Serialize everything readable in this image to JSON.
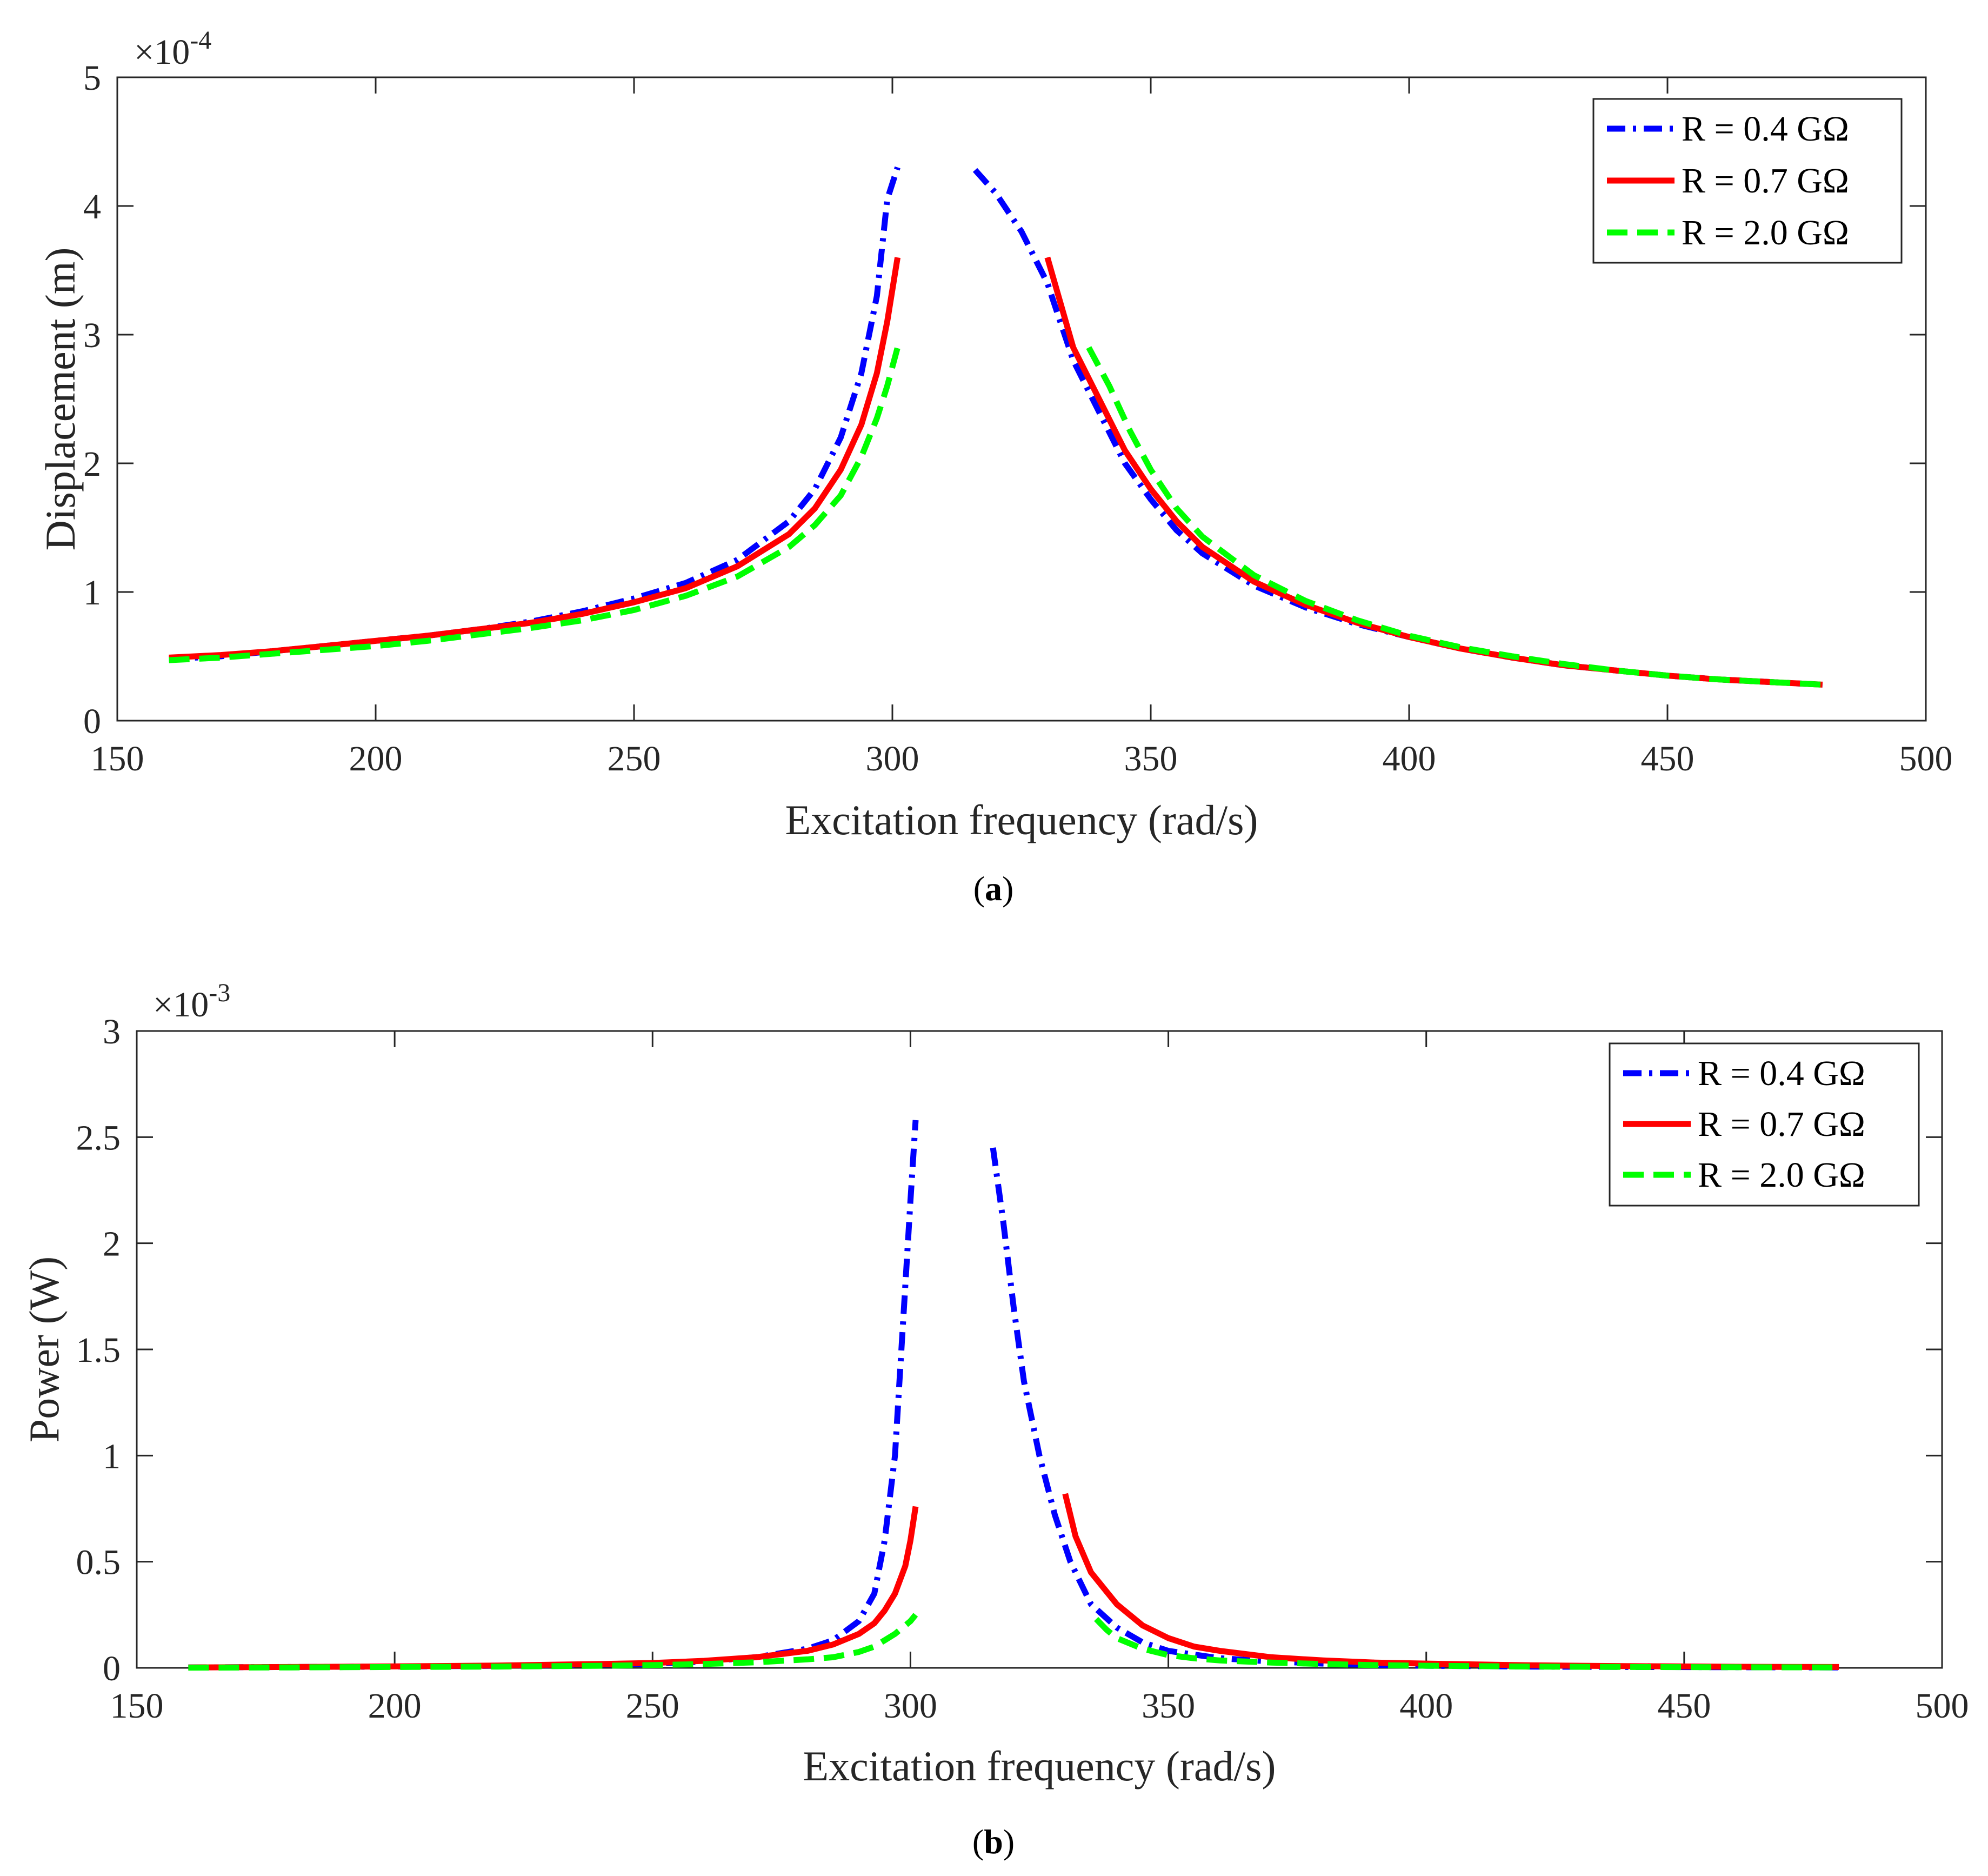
{
  "chart_data": [
    {
      "type": "line",
      "caption": "(a)",
      "caption_letter": "a",
      "xlabel": "Excitation frequency (rad/s)",
      "ylabel": "Displacement (m)",
      "exponent_label": "×10",
      "exponent_power": "-4",
      "scale": 0.0001,
      "xlim": [
        150,
        500
      ],
      "ylim": [
        0,
        5
      ],
      "xticks": [
        150,
        200,
        250,
        300,
        350,
        400,
        450,
        500
      ],
      "yticks": [
        0,
        1,
        2,
        3,
        4,
        5
      ],
      "legend_position": "top-right",
      "grid": false,
      "series": [
        {
          "name": "R = 0.4 GΩ",
          "color": "#0000ff",
          "style": "dashdot",
          "segments": [
            [
              [
                160,
                0.48
              ],
              [
                170,
                0.5
              ],
              [
                180,
                0.54
              ],
              [
                190,
                0.58
              ],
              [
                200,
                0.62
              ],
              [
                210,
                0.66
              ],
              [
                220,
                0.71
              ],
              [
                230,
                0.77
              ],
              [
                240,
                0.85
              ],
              [
                250,
                0.95
              ],
              [
                260,
                1.07
              ],
              [
                270,
                1.25
              ],
              [
                280,
                1.55
              ],
              [
                285,
                1.8
              ],
              [
                290,
                2.2
              ],
              [
                294,
                2.7
              ],
              [
                297,
                3.3
              ],
              [
                299,
                4.05
              ],
              [
                301,
                4.3
              ]
            ],
            [
              [
                316,
                4.28
              ],
              [
                320,
                4.1
              ],
              [
                325,
                3.8
              ],
              [
                330,
                3.4
              ],
              [
                335,
                2.8
              ],
              [
                340,
                2.4
              ],
              [
                345,
                2.0
              ],
              [
                350,
                1.72
              ],
              [
                355,
                1.48
              ],
              [
                360,
                1.3
              ],
              [
                370,
                1.05
              ],
              [
                380,
                0.88
              ],
              [
                390,
                0.75
              ],
              [
                400,
                0.65
              ],
              [
                410,
                0.56
              ],
              [
                420,
                0.49
              ],
              [
                430,
                0.43
              ],
              [
                440,
                0.39
              ],
              [
                450,
                0.35
              ],
              [
                460,
                0.32
              ],
              [
                470,
                0.3
              ],
              [
                480,
                0.28
              ]
            ]
          ]
        },
        {
          "name": "R = 0.7 GΩ",
          "color": "#ff0000",
          "style": "solid",
          "segments": [
            [
              [
                160,
                0.49
              ],
              [
                170,
                0.51
              ],
              [
                180,
                0.54
              ],
              [
                190,
                0.58
              ],
              [
                200,
                0.62
              ],
              [
                210,
                0.66
              ],
              [
                220,
                0.71
              ],
              [
                230,
                0.76
              ],
              [
                240,
                0.83
              ],
              [
                250,
                0.92
              ],
              [
                260,
                1.03
              ],
              [
                270,
                1.2
              ],
              [
                280,
                1.45
              ],
              [
                285,
                1.65
              ],
              [
                290,
                1.95
              ],
              [
                294,
                2.3
              ],
              [
                297,
                2.7
              ],
              [
                299,
                3.1
              ],
              [
                301,
                3.6
              ]
            ],
            [
              [
                330,
                3.6
              ],
              [
                335,
                2.9
              ],
              [
                340,
                2.5
              ],
              [
                345,
                2.1
              ],
              [
                350,
                1.8
              ],
              [
                355,
                1.55
              ],
              [
                360,
                1.35
              ],
              [
                370,
                1.08
              ],
              [
                380,
                0.9
              ],
              [
                390,
                0.76
              ],
              [
                400,
                0.65
              ],
              [
                410,
                0.56
              ],
              [
                420,
                0.49
              ],
              [
                430,
                0.43
              ],
              [
                440,
                0.39
              ],
              [
                450,
                0.35
              ],
              [
                460,
                0.32
              ],
              [
                470,
                0.3
              ],
              [
                480,
                0.28
              ]
            ]
          ]
        },
        {
          "name": "R = 2.0 GΩ",
          "color": "#00ff00",
          "style": "dashed",
          "segments": [
            [
              [
                160,
                0.47
              ],
              [
                170,
                0.49
              ],
              [
                180,
                0.52
              ],
              [
                190,
                0.55
              ],
              [
                200,
                0.58
              ],
              [
                210,
                0.62
              ],
              [
                220,
                0.67
              ],
              [
                230,
                0.72
              ],
              [
                240,
                0.78
              ],
              [
                250,
                0.86
              ],
              [
                260,
                0.97
              ],
              [
                270,
                1.12
              ],
              [
                280,
                1.35
              ],
              [
                285,
                1.52
              ],
              [
                290,
                1.75
              ],
              [
                294,
                2.05
              ],
              [
                297,
                2.35
              ],
              [
                299,
                2.6
              ],
              [
                301,
                2.9
              ]
            ],
            [
              [
                338,
                2.9
              ],
              [
                342,
                2.6
              ],
              [
                346,
                2.25
              ],
              [
                350,
                1.95
              ],
              [
                355,
                1.65
              ],
              [
                360,
                1.43
              ],
              [
                370,
                1.13
              ],
              [
                380,
                0.93
              ],
              [
                390,
                0.78
              ],
              [
                400,
                0.66
              ],
              [
                410,
                0.57
              ],
              [
                420,
                0.5
              ],
              [
                430,
                0.44
              ],
              [
                440,
                0.39
              ],
              [
                450,
                0.35
              ],
              [
                460,
                0.32
              ],
              [
                470,
                0.3
              ],
              [
                480,
                0.28
              ]
            ]
          ]
        }
      ]
    },
    {
      "type": "line",
      "caption": "(b)",
      "caption_letter": "b",
      "xlabel": "Excitation frequency (rad/s)",
      "ylabel": "Power (W)",
      "exponent_label": "×10",
      "exponent_power": "-3",
      "scale": 0.001,
      "xlim": [
        150,
        500
      ],
      "ylim": [
        0,
        3
      ],
      "xticks": [
        150,
        200,
        250,
        300,
        350,
        400,
        450,
        500
      ],
      "yticks": [
        0,
        0.5,
        1,
        1.5,
        2,
        2.5,
        3
      ],
      "legend_position": "top-right",
      "grid": false,
      "series": [
        {
          "name": "R = 0.4 GΩ",
          "color": "#0000ff",
          "style": "dashdot",
          "segments": [
            [
              [
                160,
                0.002
              ],
              [
                180,
                0.004
              ],
              [
                200,
                0.006
              ],
              [
                220,
                0.01
              ],
              [
                240,
                0.016
              ],
              [
                250,
                0.02
              ],
              [
                260,
                0.03
              ],
              [
                270,
                0.05
              ],
              [
                280,
                0.09
              ],
              [
                285,
                0.13
              ],
              [
                290,
                0.22
              ],
              [
                293,
                0.35
              ],
              [
                295,
                0.6
              ],
              [
                297,
                1.0
              ],
              [
                298,
                1.4
              ],
              [
                299,
                1.8
              ],
              [
                300,
                2.2
              ],
              [
                301,
                2.58
              ]
            ],
            [
              [
                316,
                2.45
              ],
              [
                318,
                2.1
              ],
              [
                320,
                1.7
              ],
              [
                322,
                1.35
              ],
              [
                325,
                1.0
              ],
              [
                328,
                0.72
              ],
              [
                331,
                0.5
              ],
              [
                335,
                0.3
              ],
              [
                340,
                0.19
              ],
              [
                345,
                0.12
              ],
              [
                350,
                0.08
              ],
              [
                360,
                0.045
              ],
              [
                370,
                0.03
              ],
              [
                380,
                0.02
              ],
              [
                390,
                0.014
              ],
              [
                400,
                0.01
              ],
              [
                420,
                0.006
              ],
              [
                440,
                0.004
              ],
              [
                460,
                0.003
              ],
              [
                480,
                0.002
              ]
            ]
          ]
        },
        {
          "name": "R = 0.7 GΩ",
          "color": "#ff0000",
          "style": "solid",
          "segments": [
            [
              [
                160,
                0.002
              ],
              [
                180,
                0.004
              ],
              [
                200,
                0.007
              ],
              [
                220,
                0.011
              ],
              [
                240,
                0.018
              ],
              [
                250,
                0.023
              ],
              [
                260,
                0.033
              ],
              [
                270,
                0.05
              ],
              [
                280,
                0.08
              ],
              [
                285,
                0.11
              ],
              [
                290,
                0.16
              ],
              [
                293,
                0.21
              ],
              [
                295,
                0.27
              ],
              [
                297,
                0.35
              ],
              [
                299,
                0.48
              ],
              [
                300,
                0.6
              ],
              [
                301,
                0.76
              ]
            ],
            [
              [
                330,
                0.82
              ],
              [
                332,
                0.62
              ],
              [
                335,
                0.45
              ],
              [
                340,
                0.3
              ],
              [
                345,
                0.2
              ],
              [
                350,
                0.14
              ],
              [
                355,
                0.1
              ],
              [
                360,
                0.08
              ],
              [
                370,
                0.05
              ],
              [
                380,
                0.035
              ],
              [
                390,
                0.025
              ],
              [
                400,
                0.02
              ],
              [
                420,
                0.012
              ],
              [
                440,
                0.008
              ],
              [
                460,
                0.005
              ],
              [
                480,
                0.004
              ]
            ]
          ]
        },
        {
          "name": "R = 2.0 GΩ",
          "color": "#00ff00",
          "style": "dashed",
          "segments": [
            [
              [
                160,
                0.001
              ],
              [
                180,
                0.002
              ],
              [
                200,
                0.004
              ],
              [
                220,
                0.006
              ],
              [
                240,
                0.01
              ],
              [
                250,
                0.013
              ],
              [
                260,
                0.018
              ],
              [
                270,
                0.026
              ],
              [
                280,
                0.04
              ],
              [
                285,
                0.05
              ],
              [
                290,
                0.075
              ],
              [
                293,
                0.1
              ],
              [
                295,
                0.13
              ],
              [
                297,
                0.16
              ],
              [
                299,
                0.2
              ],
              [
                300,
                0.22
              ],
              [
                301,
                0.25
              ]
            ],
            [
              [
                336,
                0.23
              ],
              [
                338,
                0.18
              ],
              [
                340,
                0.14
              ],
              [
                345,
                0.09
              ],
              [
                350,
                0.06
              ],
              [
                355,
                0.045
              ],
              [
                360,
                0.035
              ],
              [
                370,
                0.025
              ],
              [
                380,
                0.018
              ],
              [
                390,
                0.013
              ],
              [
                400,
                0.01
              ],
              [
                420,
                0.006
              ],
              [
                440,
                0.004
              ],
              [
                460,
                0.003
              ],
              [
                480,
                0.002
              ]
            ]
          ]
        }
      ]
    }
  ]
}
